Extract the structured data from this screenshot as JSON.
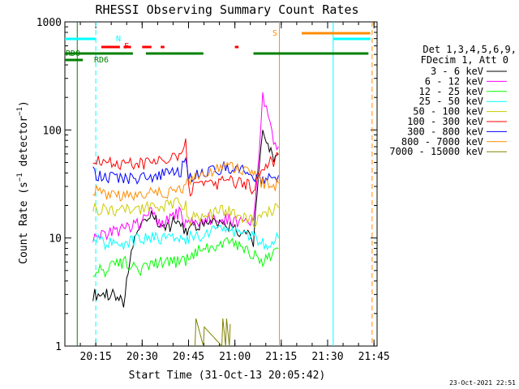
{
  "chart_data": {
    "type": "line",
    "title": "RHESSI Observing Summary Count Rates",
    "xlabel": "Start Time (31-Oct-13 20:05:42)",
    "ylabel": "Count Rate (s⁻¹ detector⁻¹)",
    "ylabel_parts": {
      "main": "Count Rate (s",
      "sup1": "−1",
      "mid": " detector",
      "sup2": "−1",
      "end": ")"
    },
    "yscale": "log",
    "ylim": [
      1,
      1000
    ],
    "xlim_minutes": [
      20.0833,
      21.7667
    ],
    "x_ticks": [
      {
        "label": "20:15",
        "value": 20.25
      },
      {
        "label": "20:30",
        "value": 20.5
      },
      {
        "label": "20:45",
        "value": 20.75
      },
      {
        "label": "21:00",
        "value": 21.0
      },
      {
        "label": "21:15",
        "value": 21.25
      },
      {
        "label": "21:30",
        "value": 21.5
      },
      {
        "label": "21:45",
        "value": 21.75
      }
    ],
    "y_ticks": [
      {
        "label": "1",
        "value": 1
      },
      {
        "label": "10",
        "value": 10
      },
      {
        "label": "100",
        "value": 100
      },
      {
        "label": "1000",
        "value": 1000
      }
    ],
    "legend_header": [
      "Det 1,3,4,5,6,9,",
      "FDecim 1, Att 0"
    ],
    "legend_placement": "right",
    "timestamp": "23-Oct-2021 22:51",
    "series": [
      {
        "name": "3 - 6 keV",
        "color": "#000000",
        "x": [
          20.235,
          20.3,
          20.35,
          20.4,
          20.45,
          20.5,
          20.55,
          20.6,
          20.65,
          20.7,
          20.735,
          20.75,
          20.8,
          20.85,
          20.9,
          20.95,
          21.0,
          21.05,
          21.08,
          21.1,
          21.13,
          21.15,
          21.17,
          21.21,
          21.235
        ],
        "y": [
          3,
          3,
          3,
          2.5,
          9,
          14,
          17,
          12,
          13,
          15,
          11,
          12,
          13,
          14,
          14,
          13,
          12,
          11,
          10,
          9,
          40,
          100,
          80,
          50,
          60
        ]
      },
      {
        "name": "6 - 12 keV",
        "color": "#ff00ff",
        "x": [
          20.235,
          20.3,
          20.4,
          20.5,
          20.55,
          20.6,
          20.65,
          20.7,
          20.735,
          20.75,
          20.85,
          20.95,
          21.05,
          21.1,
          21.13,
          21.15,
          21.17,
          21.2,
          21.235
        ],
        "y": [
          10,
          11,
          12,
          14,
          18,
          13,
          15,
          17,
          13,
          14,
          15,
          15,
          14,
          14,
          60,
          200,
          150,
          90,
          70
        ]
      },
      {
        "name": "12 - 25 keV",
        "color": "#00ff00",
        "x": [
          20.235,
          20.3,
          20.4,
          20.5,
          20.6,
          20.7,
          20.735,
          20.75,
          20.85,
          20.95,
          21.05,
          21.1,
          21.15,
          21.2,
          21.235
        ],
        "y": [
          5,
          5,
          6,
          5,
          6,
          6,
          6,
          7,
          8,
          9,
          8,
          7,
          6,
          7,
          8
        ]
      },
      {
        "name": "25 - 50 keV",
        "color": "#00ffff",
        "x": [
          20.235,
          20.3,
          20.4,
          20.5,
          20.6,
          20.7,
          20.735,
          20.75,
          20.85,
          20.95,
          21.05,
          21.1,
          21.15,
          21.2,
          21.235
        ],
        "y": [
          10,
          9,
          9,
          10,
          10,
          10,
          10,
          10,
          11,
          12,
          11,
          10,
          9,
          9,
          10
        ]
      },
      {
        "name": "50 - 100 keV",
        "color": "#cccc00",
        "x": [
          20.235,
          20.3,
          20.4,
          20.5,
          20.6,
          20.7,
          20.735,
          20.75,
          20.85,
          20.95,
          21.05,
          21.1,
          21.15,
          21.2,
          21.235
        ],
        "y": [
          19,
          18,
          18,
          19,
          20,
          21,
          20,
          15,
          16,
          18,
          15,
          14,
          17,
          18,
          19
        ]
      },
      {
        "name": "100 - 300 keV",
        "color": "#ff0000",
        "x": [
          20.235,
          20.3,
          20.4,
          20.5,
          20.6,
          20.7,
          20.735,
          20.75,
          20.85,
          20.95,
          21.05,
          21.1,
          21.15,
          21.2,
          21.235
        ],
        "y": [
          55,
          50,
          48,
          48,
          50,
          55,
          75,
          28,
          30,
          33,
          32,
          28,
          45,
          50,
          60
        ]
      },
      {
        "name": "300 - 800 keV",
        "color": "#0000ff",
        "x": [
          20.235,
          20.3,
          20.4,
          20.5,
          20.6,
          20.7,
          20.735,
          20.75,
          20.85,
          20.95,
          21.05,
          21.1,
          21.15,
          21.2,
          21.235
        ],
        "y": [
          40,
          37,
          36,
          36,
          38,
          40,
          50,
          36,
          40,
          45,
          42,
          38,
          33,
          35,
          38
        ]
      },
      {
        "name": "800 - 7000 keV",
        "color": "#ff8c00",
        "x": [
          20.235,
          20.3,
          20.4,
          20.5,
          20.6,
          20.7,
          20.735,
          20.75,
          20.85,
          20.95,
          21.05,
          21.1,
          21.15,
          21.2,
          21.235
        ],
        "y": [
          28,
          26,
          25,
          25,
          26,
          28,
          30,
          35,
          40,
          45,
          42,
          38,
          32,
          30,
          32
        ]
      },
      {
        "name": "7000 - 15000 keV",
        "color": "#808000",
        "x": [
          20.785,
          20.79,
          20.83,
          20.835,
          20.93,
          20.935,
          20.95,
          20.955,
          20.97,
          20.975
        ],
        "y": [
          1,
          1.8,
          1,
          1.5,
          1,
          1.8,
          1,
          1.8,
          1,
          1.6
        ]
      }
    ],
    "state_bars": [
      {
        "label": "RD0",
        "color": "#008000",
        "segments": [
          [
            20.0833,
            20.45
          ],
          [
            20.52,
            20.83
          ],
          [
            21.1,
            21.72
          ]
        ]
      },
      {
        "label": "RD6",
        "color": "#008000",
        "segments": [
          [
            20.0833,
            20.18
          ]
        ]
      },
      {
        "label": "N",
        "color": "#00ffff",
        "segments": [
          [
            20.0833,
            20.25
          ],
          [
            21.53,
            21.73
          ]
        ]
      },
      {
        "label": "F",
        "color": "#ff0000",
        "segments": [
          [
            20.28,
            20.38
          ],
          [
            20.4,
            20.44
          ],
          [
            20.5,
            20.55
          ],
          [
            20.6,
            20.62
          ],
          [
            21.0,
            21.02
          ]
        ]
      },
      {
        "label": "S",
        "color": "#ff8c00",
        "segments": [
          [
            21.36,
            21.73
          ]
        ]
      }
    ],
    "vertical_markers": [
      {
        "x": 20.25,
        "color": "#00ffff",
        "style": "dashed"
      },
      {
        "x": 21.24,
        "color": "#ff8c00",
        "style": "solid"
      },
      {
        "x": 21.53,
        "color": "#00ffff",
        "style": "solid"
      },
      {
        "x": 21.74,
        "color": "#ff8c00",
        "style": "dashed"
      },
      {
        "x": 20.15,
        "color": "#008000",
        "style": "solid"
      }
    ]
  }
}
